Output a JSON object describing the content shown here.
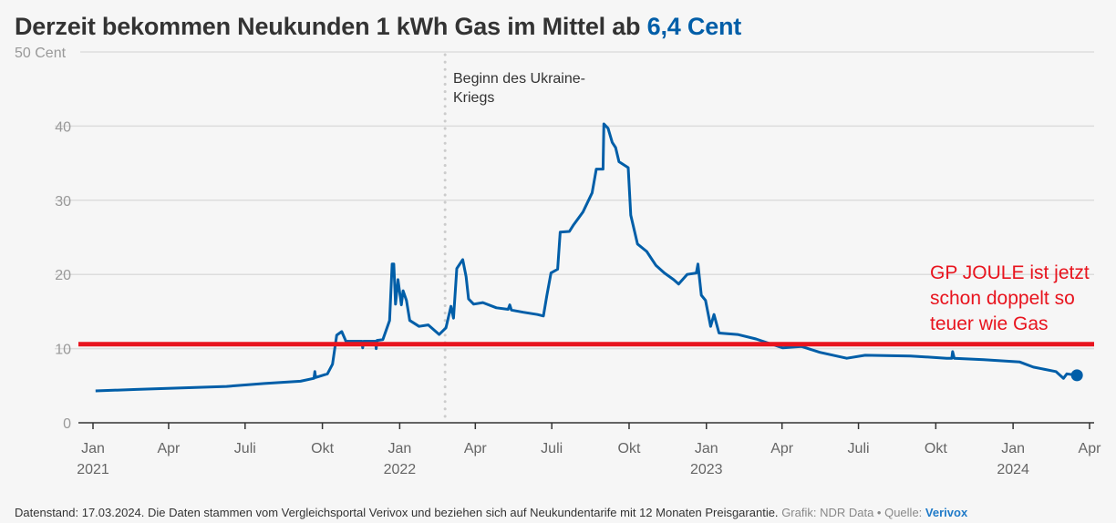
{
  "title": {
    "text": "Derzeit bekommen Neukunden 1 kWh Gas im Mittel ab ",
    "highlight": "6,4 Cent",
    "highlight_color": "#005ea8"
  },
  "footer": {
    "text": "Datenstand: 17.03.2024. Die Daten stammen vom Vergleichsportal Verivox und beziehen sich auf Neukundentarife mit 12 Monaten Preisgarantie.",
    "credit": "Grafik: NDR Data • Quelle:",
    "source": "Verivox"
  },
  "chart_data": {
    "type": "line",
    "title": "Derzeit bekommen Neukunden 1 kWh Gas im Mittel ab 6,4 Cent",
    "ylabel": "",
    "xlabel": "",
    "ylim": [
      0,
      50
    ],
    "xlim": [
      "2021-01-01",
      "2024-04-01"
    ],
    "grid": true,
    "line_color": "#005ea8",
    "y_ticks": [
      {
        "v": 0,
        "label": "0"
      },
      {
        "v": 10,
        "label": "10"
      },
      {
        "v": 20,
        "label": "20"
      },
      {
        "v": 30,
        "label": "30"
      },
      {
        "v": 40,
        "label": "40"
      },
      {
        "v": 50,
        "label": "50 Cent"
      }
    ],
    "x_ticks": [
      {
        "date": "2021-01-01",
        "label": "Jan",
        "year": "2021"
      },
      {
        "date": "2021-04-01",
        "label": "Apr",
        "year": ""
      },
      {
        "date": "2021-07-01",
        "label": "Juli",
        "year": ""
      },
      {
        "date": "2021-10-01",
        "label": "Okt",
        "year": ""
      },
      {
        "date": "2022-01-01",
        "label": "Jan",
        "year": "2022"
      },
      {
        "date": "2022-04-01",
        "label": "Apr",
        "year": ""
      },
      {
        "date": "2022-07-01",
        "label": "Juli",
        "year": ""
      },
      {
        "date": "2022-10-01",
        "label": "Okt",
        "year": ""
      },
      {
        "date": "2023-01-01",
        "label": "Jan",
        "year": "2023"
      },
      {
        "date": "2023-04-01",
        "label": "Apr",
        "year": ""
      },
      {
        "date": "2023-07-01",
        "label": "Juli",
        "year": ""
      },
      {
        "date": "2023-10-01",
        "label": "Okt",
        "year": ""
      },
      {
        "date": "2024-01-01",
        "label": "Jan",
        "year": "2024"
      },
      {
        "date": "2024-04-01",
        "label": "Apr",
        "year": ""
      }
    ],
    "annotations": [
      {
        "type": "vline",
        "date": "2022-02-24",
        "label": "Beginn des Ukraine-Kriegs",
        "color": "#cccccc"
      },
      {
        "type": "hline",
        "value": 10.6,
        "label": "GP JOULE ist jetzt schon doppelt so teuer wie Gas",
        "color": "#e8141e"
      }
    ],
    "series": [
      {
        "points": [
          [
            "2021-01-04",
            4.3
          ],
          [
            "2021-02-22",
            4.5
          ],
          [
            "2021-06-09",
            4.9
          ],
          [
            "2021-07-24",
            5.3
          ],
          [
            "2021-09-05",
            5.6
          ],
          [
            "2021-09-21",
            6.0
          ],
          [
            "2021-09-22",
            6.9
          ],
          [
            "2021-09-23",
            6.1
          ],
          [
            "2021-10-07",
            6.6
          ],
          [
            "2021-10-13",
            7.9
          ],
          [
            "2021-10-18",
            11.8
          ],
          [
            "2021-10-24",
            12.3
          ],
          [
            "2021-10-29",
            11.0
          ],
          [
            "2021-11-17",
            11.0
          ],
          [
            "2021-11-18",
            10.1
          ],
          [
            "2021-11-19",
            11.0
          ],
          [
            "2021-12-03",
            11.0
          ],
          [
            "2021-12-04",
            10.0
          ],
          [
            "2021-12-05",
            11.1
          ],
          [
            "2021-12-12",
            11.2
          ],
          [
            "2021-12-20",
            13.8
          ],
          [
            "2021-12-23",
            21.4
          ],
          [
            "2021-12-25",
            21.4
          ],
          [
            "2021-12-27",
            16.0
          ],
          [
            "2021-12-30",
            19.3
          ],
          [
            "2022-01-03",
            15.9
          ],
          [
            "2022-01-05",
            17.8
          ],
          [
            "2022-01-09",
            16.5
          ],
          [
            "2022-01-13",
            13.8
          ],
          [
            "2022-01-24",
            13.0
          ],
          [
            "2022-02-04",
            13.2
          ],
          [
            "2022-02-17",
            11.9
          ],
          [
            "2022-02-25",
            12.8
          ],
          [
            "2022-03-03",
            15.7
          ],
          [
            "2022-03-06",
            14.1
          ],
          [
            "2022-03-10",
            20.8
          ],
          [
            "2022-03-17",
            22.0
          ],
          [
            "2022-03-21",
            19.7
          ],
          [
            "2022-03-24",
            16.7
          ],
          [
            "2022-03-30",
            16.0
          ],
          [
            "2022-04-10",
            16.2
          ],
          [
            "2022-04-26",
            15.5
          ],
          [
            "2022-05-10",
            15.3
          ],
          [
            "2022-05-12",
            15.9
          ],
          [
            "2022-05-14",
            15.2
          ],
          [
            "2022-05-28",
            14.9
          ],
          [
            "2022-06-14",
            14.6
          ],
          [
            "2022-06-21",
            14.4
          ],
          [
            "2022-06-25",
            17.1
          ],
          [
            "2022-06-30",
            20.2
          ],
          [
            "2022-07-08",
            20.7
          ],
          [
            "2022-07-11",
            25.7
          ],
          [
            "2022-07-22",
            25.8
          ],
          [
            "2022-07-27",
            26.7
          ],
          [
            "2022-08-07",
            28.4
          ],
          [
            "2022-08-18",
            31.0
          ],
          [
            "2022-08-23",
            34.2
          ],
          [
            "2022-08-31",
            34.2
          ],
          [
            "2022-09-01",
            40.3
          ],
          [
            "2022-09-06",
            39.7
          ],
          [
            "2022-09-11",
            37.8
          ],
          [
            "2022-09-15",
            37.1
          ],
          [
            "2022-09-19",
            35.2
          ],
          [
            "2022-09-30",
            34.4
          ],
          [
            "2022-10-03",
            28.0
          ],
          [
            "2022-10-11",
            24.1
          ],
          [
            "2022-10-22",
            23.1
          ],
          [
            "2022-11-02",
            21.2
          ],
          [
            "2022-11-12",
            20.2
          ],
          [
            "2022-11-23",
            19.3
          ],
          [
            "2022-11-29",
            18.7
          ],
          [
            "2022-12-09",
            20.0
          ],
          [
            "2022-12-20",
            20.2
          ],
          [
            "2022-12-22",
            21.4
          ],
          [
            "2022-12-26",
            17.2
          ],
          [
            "2022-12-31",
            16.5
          ],
          [
            "2023-01-06",
            13.0
          ],
          [
            "2023-01-10",
            14.6
          ],
          [
            "2023-01-16",
            12.1
          ],
          [
            "2023-02-07",
            11.9
          ],
          [
            "2023-03-01",
            11.3
          ],
          [
            "2023-03-22",
            10.5
          ],
          [
            "2023-04-02",
            10.1
          ],
          [
            "2023-04-24",
            10.3
          ],
          [
            "2023-05-16",
            9.5
          ],
          [
            "2023-06-17",
            8.7
          ],
          [
            "2023-07-09",
            9.1
          ],
          [
            "2023-09-01",
            9.0
          ],
          [
            "2023-10-14",
            8.7
          ],
          [
            "2023-10-20",
            8.7
          ],
          [
            "2023-10-21",
            9.6
          ],
          [
            "2023-10-23",
            8.7
          ],
          [
            "2023-11-27",
            8.5
          ],
          [
            "2024-01-09",
            8.2
          ],
          [
            "2024-01-25",
            7.5
          ],
          [
            "2024-02-21",
            6.9
          ],
          [
            "2024-03-01",
            6.0
          ],
          [
            "2024-03-05",
            6.6
          ],
          [
            "2024-03-17",
            6.4
          ]
        ]
      }
    ]
  }
}
